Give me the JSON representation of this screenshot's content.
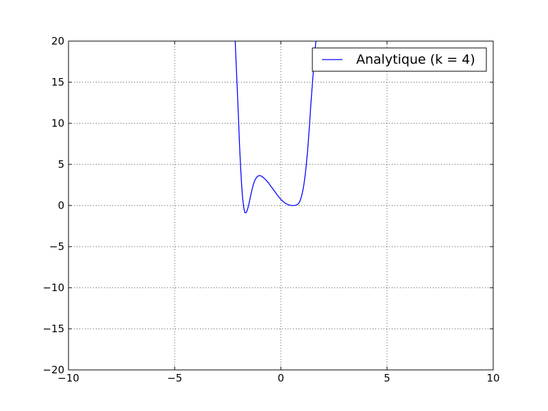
{
  "chart_data": {
    "type": "line",
    "title": "",
    "xlabel": "",
    "ylabel": "",
    "xlim": [
      -10,
      10
    ],
    "ylim": [
      -20,
      20
    ],
    "xticks": [
      -10,
      -5,
      0,
      5,
      10
    ],
    "yticks": [
      -20,
      -15,
      -10,
      -5,
      0,
      5,
      10,
      15,
      20
    ],
    "xtick_labels": [
      "−10",
      "−5",
      "0",
      "5",
      "10"
    ],
    "ytick_labels": [
      "−20",
      "−15",
      "−10",
      "−5",
      "0",
      "5",
      "10",
      "15",
      "20"
    ],
    "grid": true,
    "legend_position": "top-right",
    "series": [
      {
        "name": "Analytique (k = 4)",
        "color": "#0000ff",
        "x": [
          -2.15,
          -2.1,
          -2.05,
          -2.0,
          -1.95,
          -1.9,
          -1.85,
          -1.8,
          -1.75,
          -1.7,
          -1.65,
          -1.6,
          -1.55,
          -1.5,
          -1.45,
          -1.4,
          -1.35,
          -1.3,
          -1.25,
          -1.2,
          -1.1,
          -1.0,
          -0.9,
          -0.8,
          -0.7,
          -0.6,
          -0.5,
          -0.4,
          -0.3,
          -0.2,
          -0.1,
          0.0,
          0.1,
          0.2,
          0.3,
          0.4,
          0.5,
          0.6,
          0.7,
          0.8,
          0.85,
          0.9,
          0.95,
          1.0,
          1.05,
          1.1,
          1.15,
          1.2,
          1.25,
          1.3,
          1.35,
          1.4,
          1.45,
          1.5,
          1.55,
          1.6,
          1.65
        ],
        "y": [
          20.0,
          17.0,
          14.0,
          11.0,
          7.6,
          4.9,
          2.6,
          0.9,
          -0.2,
          -0.85,
          -0.9,
          -0.7,
          -0.3,
          0.25,
          0.85,
          1.45,
          2.0,
          2.5,
          2.9,
          3.2,
          3.55,
          3.65,
          3.55,
          3.35,
          3.1,
          2.8,
          2.45,
          2.1,
          1.75,
          1.4,
          1.05,
          0.75,
          0.5,
          0.3,
          0.15,
          0.05,
          0.0,
          0.0,
          0.02,
          0.15,
          0.3,
          0.55,
          0.9,
          1.4,
          2.0,
          2.8,
          3.8,
          5.0,
          6.4,
          8.0,
          9.8,
          11.8,
          13.6,
          15.3,
          17.0,
          18.6,
          20.0
        ]
      }
    ]
  }
}
